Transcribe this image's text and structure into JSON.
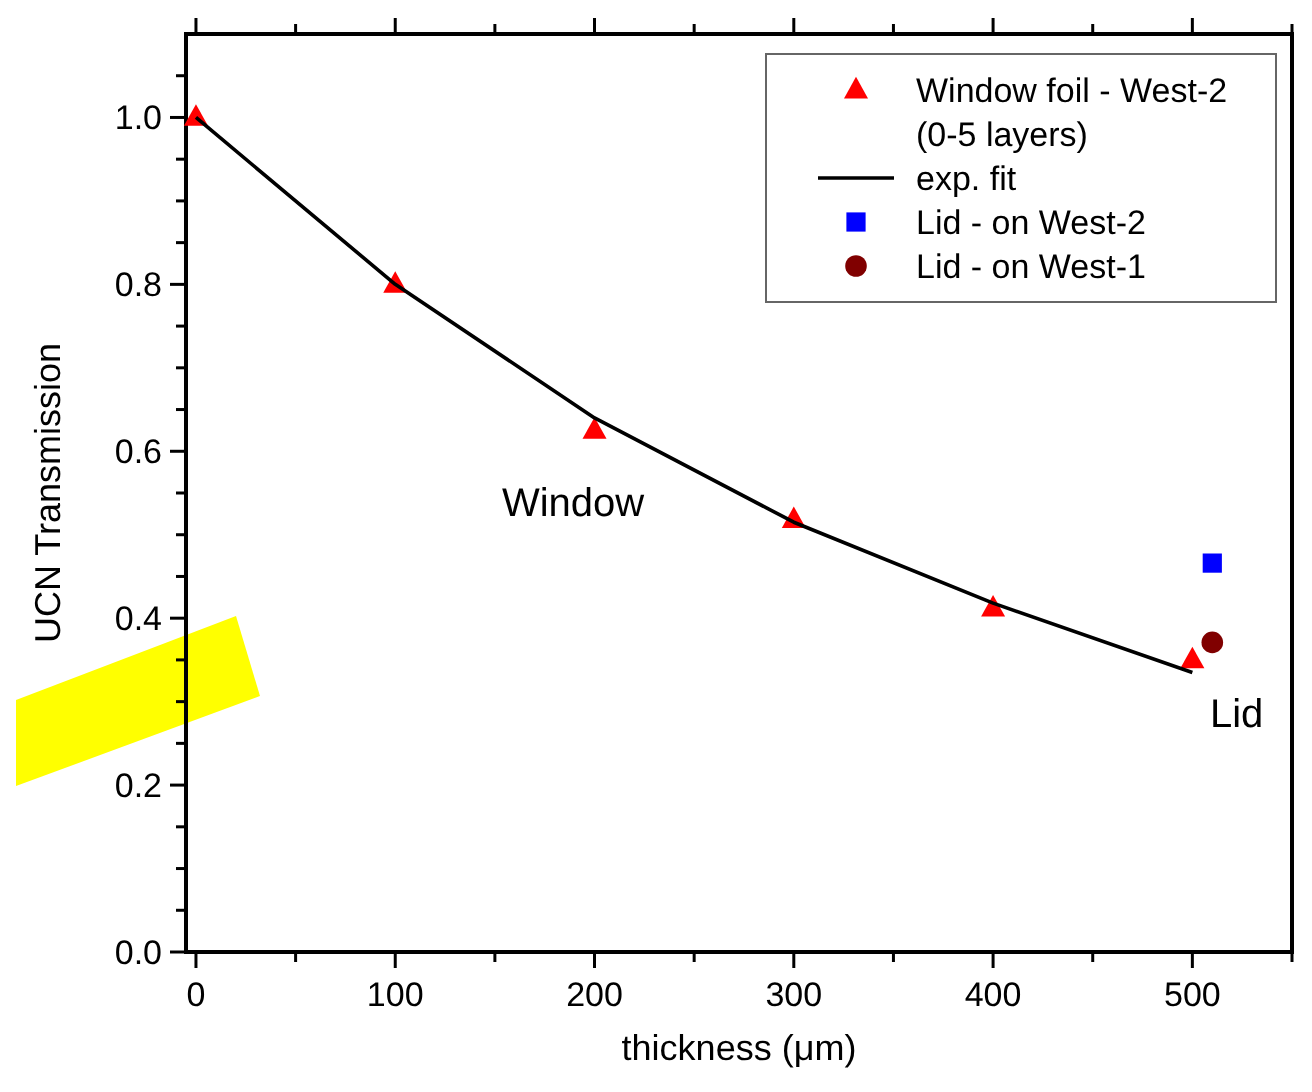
{
  "chart_data": {
    "type": "scatter",
    "xlabel": "thickness (μm)",
    "ylabel": "UCN Transmission",
    "xlim": [
      -5,
      550
    ],
    "ylim": [
      0,
      1.1
    ],
    "xticks": [
      0,
      {
        "value": 50,
        "label": null
      },
      100,
      {
        "value": 150,
        "label": null
      },
      200,
      {
        "value": 250,
        "label": null
      },
      300,
      {
        "value": 350,
        "label": null
      },
      400,
      {
        "value": 450,
        "label": null
      },
      500,
      {
        "value": 550,
        "label": null
      }
    ],
    "yticks": [
      {
        "value": 0,
        "label": "0.0"
      },
      {
        "value": 0.1,
        "label": null
      },
      0.2,
      {
        "value": 0.3,
        "label": null
      },
      0.4,
      {
        "value": 0.5,
        "label": null
      },
      0.6,
      {
        "value": 0.7,
        "label": null
      },
      0.8,
      {
        "value": 0.9,
        "label": null
      },
      {
        "value": 1,
        "label": "1.0"
      },
      {
        "value": 1.05,
        "label": null
      },
      {
        "value": 0.05,
        "label": null
      },
      {
        "value": 0.15,
        "label": null
      },
      {
        "value": 0.25,
        "label": null
      },
      {
        "value": 0.35,
        "label": null
      },
      {
        "value": 0.45,
        "label": null
      },
      {
        "value": 0.55,
        "label": null
      },
      {
        "value": 0.65,
        "label": null
      },
      {
        "value": 0.75,
        "label": null
      },
      {
        "value": 0.85,
        "label": null
      },
      {
        "value": 0.95,
        "label": null
      }
    ],
    "legend": "top right",
    "series": [
      {
        "name": "Window foil - West-2 (0-5 layers)",
        "marker": "triangle",
        "color": "#ff0000",
        "x": [
          0,
          100,
          200,
          300,
          400,
          500
        ],
        "values": [
          1.0,
          0.8,
          0.625,
          0.518,
          0.412,
          0.35
        ]
      },
      {
        "name": "exp. fit",
        "type": "line",
        "marker": "none",
        "line_style": "solid",
        "color": "#000000",
        "x": [
          0,
          100,
          200,
          300,
          400,
          500
        ],
        "values": [
          1.0,
          0.8,
          0.64,
          0.515,
          0.418,
          0.335
        ]
      },
      {
        "name": "Lid - on West-2",
        "marker": "square",
        "color": "#0000ff",
        "x": [
          510
        ],
        "values": [
          0.466
        ]
      },
      {
        "name": "Lid - on West-1",
        "marker": "circle",
        "color": "#800000",
        "x": [
          510
        ],
        "values": [
          0.371
        ]
      }
    ],
    "annotations": [
      "Window",
      "Lid"
    ]
  }
}
